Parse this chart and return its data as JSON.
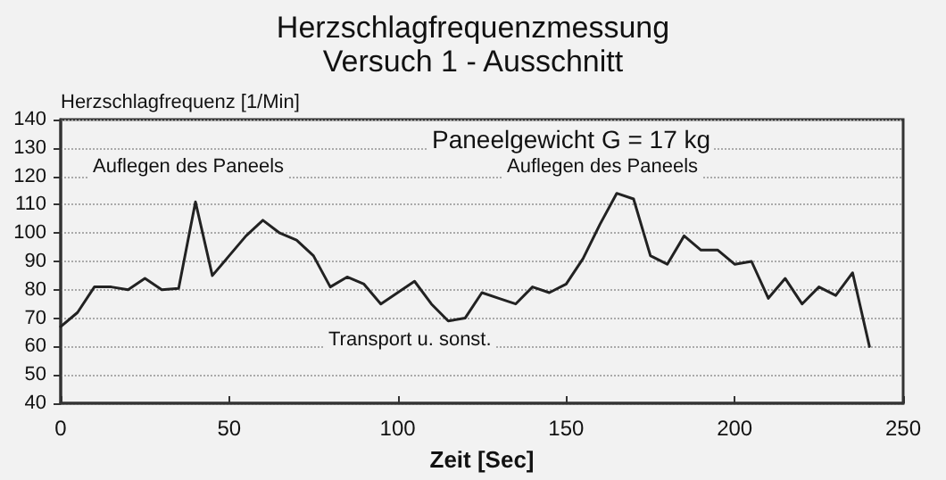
{
  "chart_data": {
    "type": "line",
    "title": "Herzschlagfrequenzmessung",
    "subtitle": "Versuch 1 - Ausschnitt",
    "xlabel": "Zeit [Sec]",
    "ylabel": "Herzschlagfrequenz [1/Min]",
    "annotations": [
      "Paneelgewicht G = 17 kg",
      "Auflegen des Paneels",
      "Auflegen des Paneels",
      "Transport u. sonst."
    ],
    "x": [
      0,
      5,
      10,
      15,
      20,
      25,
      30,
      35,
      40,
      45,
      50,
      55,
      60,
      65,
      70,
      75,
      80,
      85,
      90,
      95,
      100,
      105,
      110,
      115,
      120,
      125,
      130,
      135,
      140,
      145,
      150,
      155,
      160,
      165,
      170,
      175,
      180,
      185,
      190,
      195,
      200,
      205,
      210,
      215,
      220,
      225,
      230,
      235,
      240
    ],
    "series": [
      {
        "color": "#222222",
        "values": [
          67,
          72,
          81,
          81,
          80,
          84,
          80,
          80.5,
          111,
          85,
          92,
          99,
          104.5,
          100,
          97.5,
          92,
          81,
          84.5,
          82,
          75,
          79,
          83,
          75,
          69,
          70,
          79,
          77,
          75,
          81,
          79,
          82,
          91,
          103,
          114,
          112,
          92,
          89,
          99,
          94,
          94,
          89,
          90,
          77,
          84,
          75,
          81,
          78,
          86,
          60
        ]
      }
    ],
    "xlim": [
      0,
      250
    ],
    "xticks": [
      0,
      50,
      100,
      150,
      200,
      250
    ],
    "ylim": [
      40,
      140
    ],
    "yticks": [
      40,
      50,
      60,
      70,
      80,
      90,
      100,
      110,
      120,
      130,
      140
    ],
    "grid": "y",
    "marker": "none",
    "line_style": "solid"
  }
}
